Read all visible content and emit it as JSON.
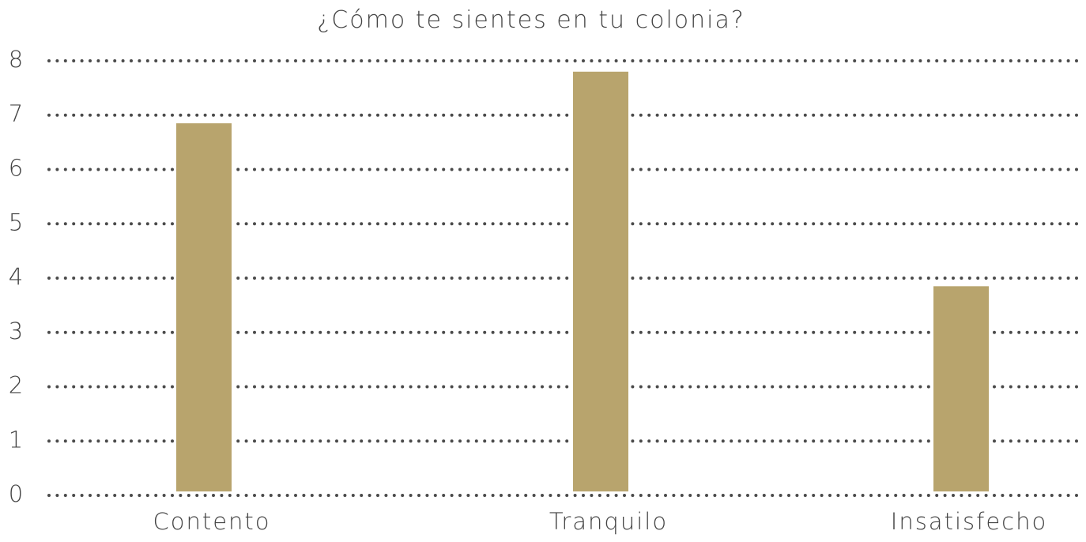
{
  "chart_data": {
    "type": "bar",
    "title": "¿Cómo te sientes en tu colonia?",
    "categories": [
      "Contento",
      "Tranquilo",
      "Insatisfecho"
    ],
    "values": [
      6.85,
      7.8,
      3.85
    ],
    "y_ticks": [
      "0",
      "1",
      "2",
      "3",
      "4",
      "5",
      "6",
      "7",
      "8"
    ],
    "ylim": [
      0,
      8
    ],
    "xlabel": "",
    "ylabel": "",
    "grid": true,
    "grid_style": "dotted",
    "legend": "none",
    "bar_color": "#b8a46d",
    "grid_color": "#4a4a4a",
    "text_color": "#444444"
  }
}
